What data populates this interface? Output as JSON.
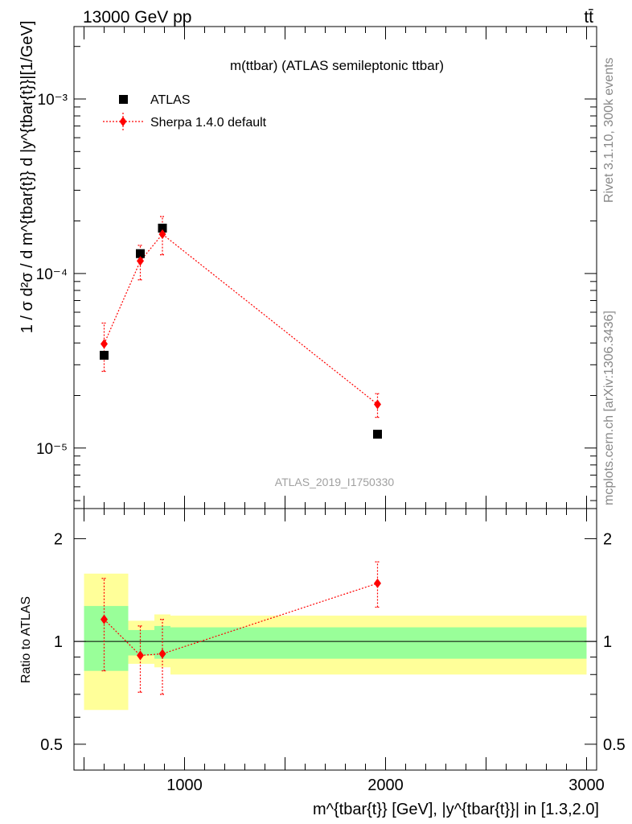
{
  "header": {
    "energy_label": "13000 GeV pp",
    "process_label": "tt̄"
  },
  "side_labels": {
    "rivet": "Rivet 3.1.10,  300k events",
    "source": "mcplots.cern.ch [arXiv:1306.3436]"
  },
  "chart_data": [
    {
      "type": "scatter",
      "panel": "main",
      "title": "m(ttbar) (ATLAS semileptonic ttbar)",
      "analysis_label": "ATLAS_2019_I1750330",
      "ylabel": "1 / σ d²σ / d m^{tbar{t}} d |y^{tbar{t}}|[1/GeV]",
      "yscale": "log",
      "ylim": [
        4.5e-06,
        0.0026
      ],
      "xlim": [
        450,
        3050
      ],
      "ytick_labels": [
        "10⁻⁵",
        "10⁻⁴",
        "10⁻³"
      ],
      "ytick_values": [
        1e-05,
        0.0001,
        0.001
      ],
      "legend_position": "top-left",
      "series": [
        {
          "name": "ATLAS",
          "color": "#000000",
          "marker": "square",
          "x": [
            600,
            780,
            890,
            1960
          ],
          "values": [
            3.4e-05,
            0.00013,
            0.000182,
            1.2e-05
          ]
        },
        {
          "name": "Sherpa 1.4.0 default",
          "color": "#ff0000",
          "marker": "diamond",
          "line": "dotted",
          "x": [
            600,
            780,
            890,
            1960
          ],
          "values": [
            3.95e-05,
            0.000118,
            0.000168,
            1.78e-05
          ],
          "err_low": [
            2.75e-05,
            9.2e-05,
            0.000128,
            1.5e-05
          ],
          "err_high": [
            5.2e-05,
            0.000145,
            0.000212,
            2.05e-05
          ]
        }
      ]
    },
    {
      "type": "scatter",
      "panel": "ratio",
      "ylabel": "Ratio to ATLAS",
      "xlabel": "m^{tbar{t}} [GeV], |y^{tbar{t}}| in [1.3,2.0]",
      "yscale": "log",
      "ylim": [
        0.42,
        2.45
      ],
      "xlim": [
        450,
        3050
      ],
      "ytick_values": [
        0.5,
        1,
        2
      ],
      "ytick_labels": [
        "0.5",
        "1",
        "2"
      ],
      "xtick_values": [
        1000,
        2000,
        3000
      ],
      "xtick_labels": [
        "1000",
        "2000",
        "3000"
      ],
      "bands": [
        {
          "x_low": 500,
          "x_high": 720,
          "yellow": [
            0.63,
            1.58
          ],
          "green": [
            0.82,
            1.27
          ]
        },
        {
          "x_low": 720,
          "x_high": 850,
          "yellow": [
            0.86,
            1.15
          ],
          "green": [
            0.91,
            1.08
          ]
        },
        {
          "x_low": 850,
          "x_high": 930,
          "yellow": [
            0.84,
            1.2
          ],
          "green": [
            0.89,
            1.11
          ]
        },
        {
          "x_low": 930,
          "x_high": 3000,
          "yellow": [
            0.8,
            1.19
          ],
          "green": [
            0.89,
            1.1
          ]
        }
      ],
      "series": [
        {
          "name": "Sherpa 1.4.0 default",
          "color": "#ff0000",
          "marker": "diamond",
          "line": "dotted",
          "x": [
            600,
            780,
            890,
            1960
          ],
          "values": [
            1.16,
            0.91,
            0.92,
            1.48
          ],
          "err_low": [
            0.82,
            0.71,
            0.7,
            1.26
          ],
          "err_high": [
            1.53,
            1.11,
            1.16,
            1.71
          ]
        }
      ],
      "reference_line": 1.0
    }
  ]
}
